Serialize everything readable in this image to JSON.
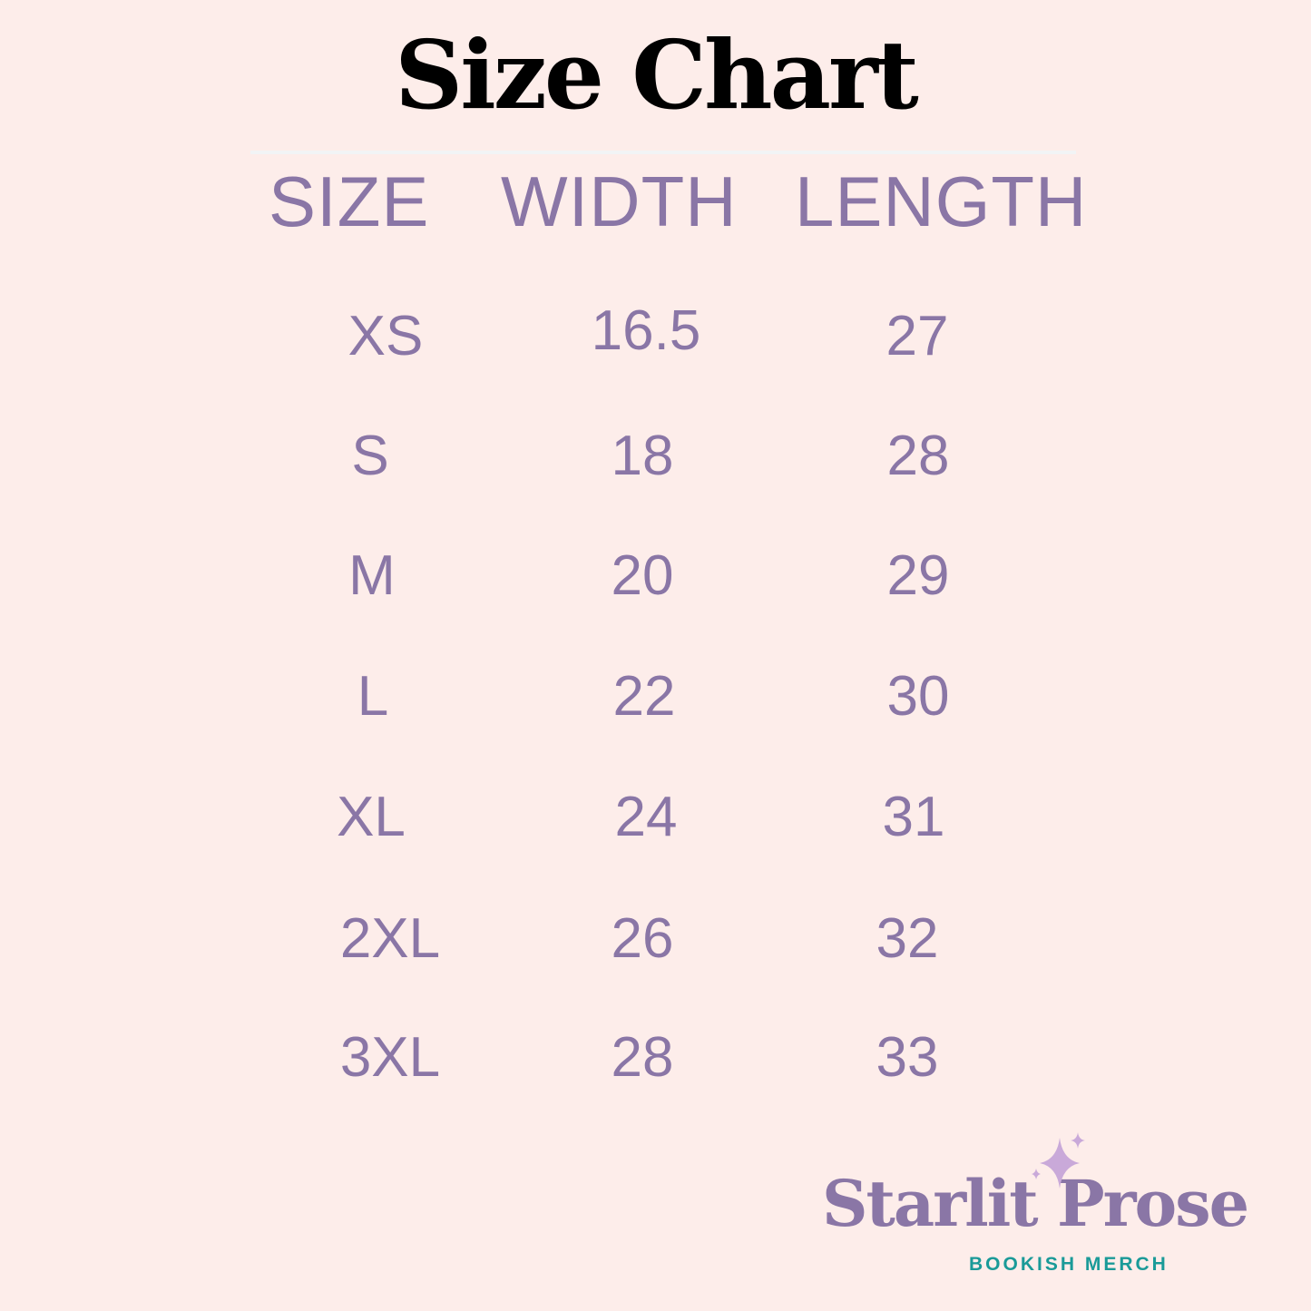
{
  "title": "Size Chart",
  "headers": [
    "SIZE",
    "WIDTH",
    "LENGTH"
  ],
  "rows": [
    {
      "size": "XS",
      "width": "16.5",
      "length": "27"
    },
    {
      "size": "S",
      "width": "18",
      "length": "28"
    },
    {
      "size": "M",
      "width": "20",
      "length": "29"
    },
    {
      "size": "L",
      "width": "22",
      "length": "30"
    },
    {
      "size": "XL",
      "width": "24",
      "length": "31"
    },
    {
      "size": "2XL",
      "width": "26",
      "length": "32"
    },
    {
      "size": "3XL",
      "width": "28",
      "length": "33"
    }
  ],
  "logo": {
    "brand": "Starlit Prose",
    "tagline": "BOOKISH MERCH",
    "icon": "sparkle-icon"
  },
  "colors": {
    "background": "#fdedea",
    "text_purple": "#8a76a6",
    "tagline_teal": "#1a9a98",
    "sparkle": "#c9a9d9"
  }
}
